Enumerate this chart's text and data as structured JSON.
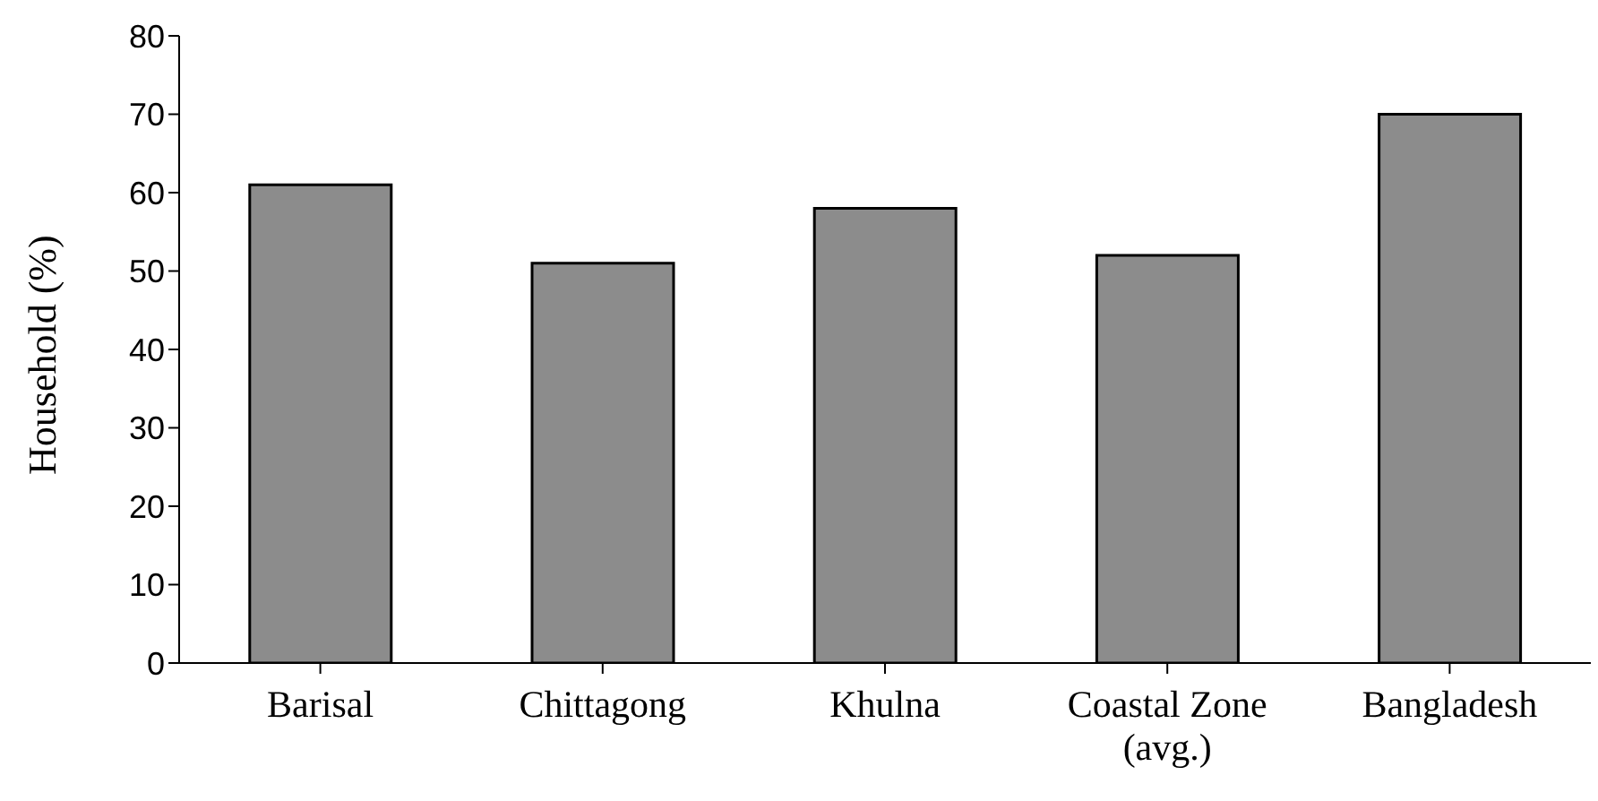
{
  "chart_data": {
    "type": "bar",
    "ylabel": "Household (%)",
    "categories": [
      "Barisal",
      "Chittagong",
      "Khulna",
      "Coastal Zone (avg.)",
      "Bangladesh"
    ],
    "values": [
      61,
      51,
      58,
      52,
      70
    ],
    "color": "#8c8c8c",
    "ylim": [
      0,
      80
    ],
    "yticks": [
      0,
      10,
      20,
      30,
      40,
      50,
      60,
      70,
      80
    ],
    "grid": false,
    "legend": false
  }
}
